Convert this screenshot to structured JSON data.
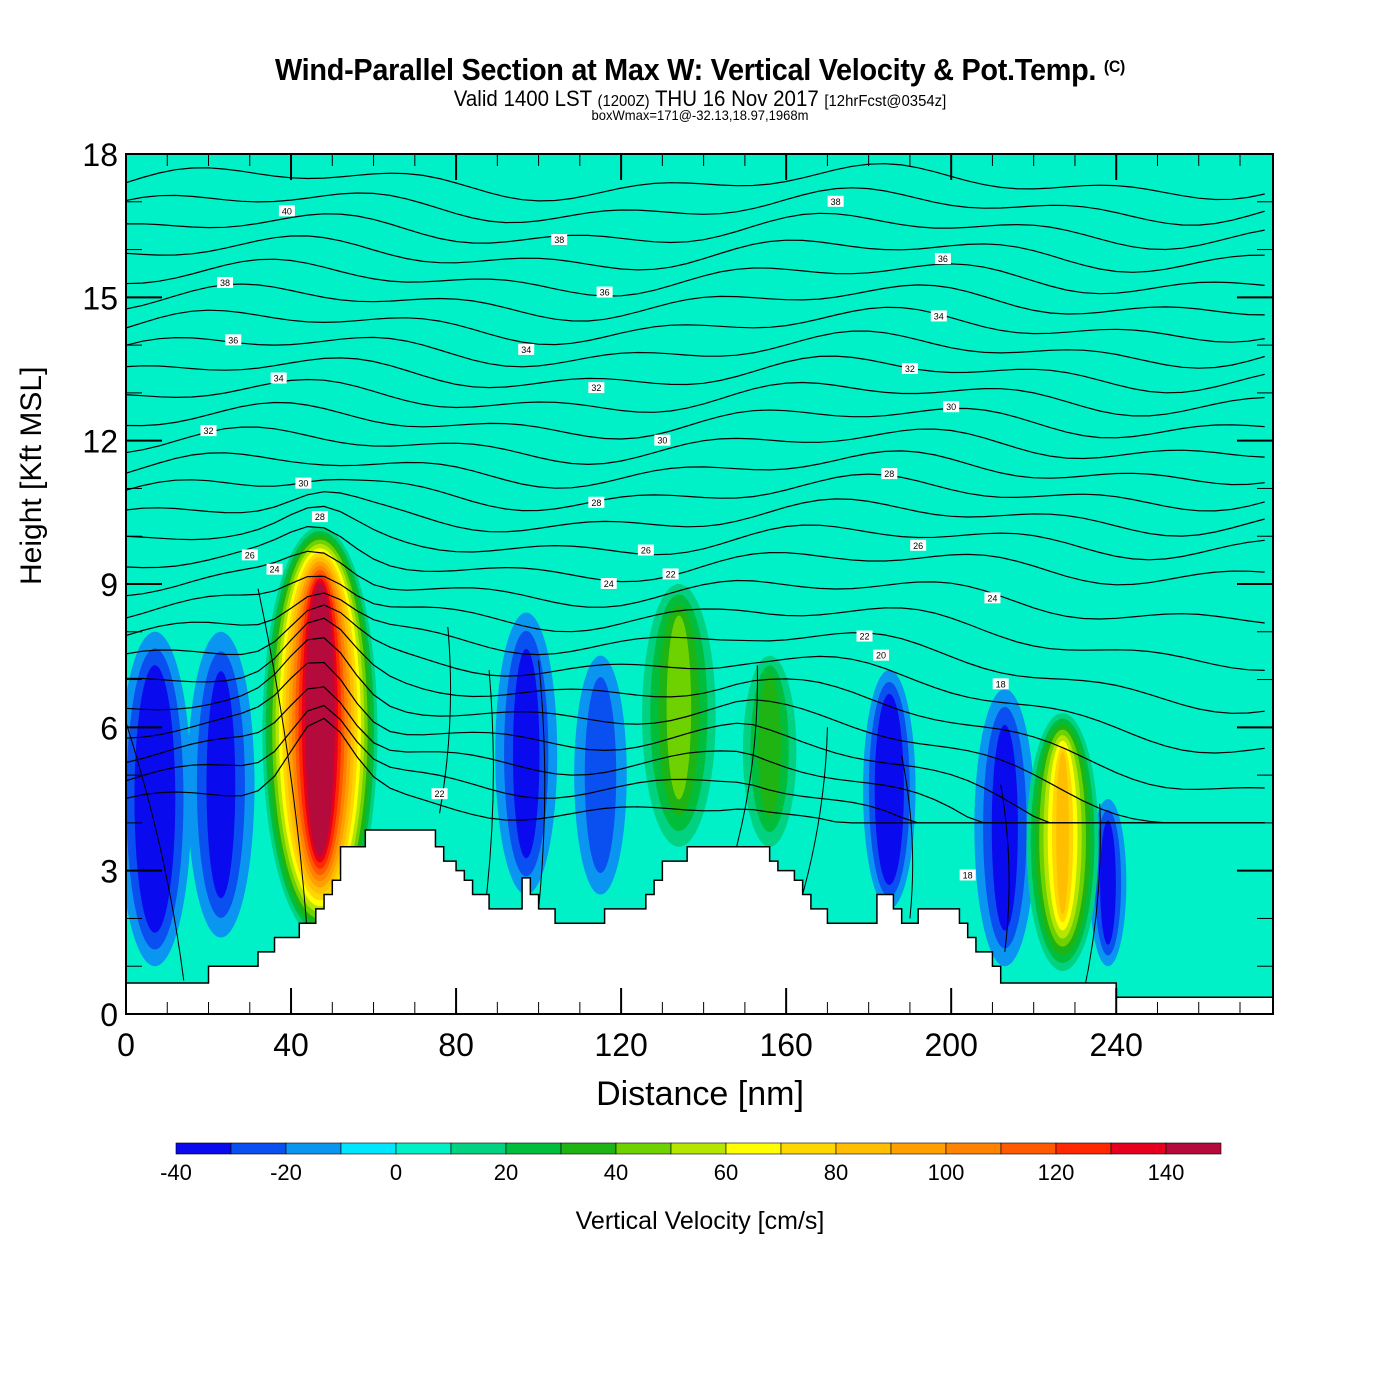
{
  "header": {
    "title": "Wind-Parallel Section at Max W: Vertical Velocity & Pot.Temp.",
    "copyright": "(C)",
    "subtitle_a": "Valid 1400 LST",
    "subtitle_b": "(1200Z)",
    "subtitle_c": "THU 16 Nov 2017",
    "subtitle_d": "[12hrFcst@0354z]",
    "subtitle2": "boxWmax=171@-32.13,18.97,1968m"
  },
  "chart_data": {
    "type": "heatmap",
    "title": "Wind-Parallel Section at Max W: Vertical Velocity & Pot.Temp.",
    "xlabel": "Distance [nm]",
    "ylabel": "Height [Kft MSL]",
    "xlim": [
      0,
      278
    ],
    "ylim": [
      0,
      18
    ],
    "xticks": [
      0,
      40,
      80,
      120,
      160,
      200,
      240
    ],
    "yticks": [
      0,
      3,
      6,
      9,
      12,
      15,
      18
    ],
    "colorbar": {
      "label": "Vertical Velocity [cm/s]",
      "bounds": [
        -40,
        -30,
        -20,
        -10,
        0,
        10,
        20,
        30,
        40,
        50,
        60,
        70,
        80,
        90,
        100,
        110,
        120,
        130,
        140,
        150
      ],
      "tick_labels": [
        "-40",
        "-20",
        "0",
        "20",
        "40",
        "60",
        "80",
        "100",
        "120",
        "140"
      ],
      "colors": [
        "#0a0aee",
        "#0a50f0",
        "#0a96f0",
        "#00e6ff",
        "#00f0c8",
        "#00d282",
        "#00be3c",
        "#1eb414",
        "#6ed200",
        "#b4e600",
        "#ffff00",
        "#ffd700",
        "#ffbe00",
        "#ffa000",
        "#ff8200",
        "#ff5a00",
        "#ff2800",
        "#e6001e",
        "#b40a3c"
      ]
    },
    "background_value_cm_s": 0,
    "max_w": {
      "value_cm_s": 171,
      "lat": -32.13,
      "lon": 18.97,
      "height_m": 1968
    },
    "terrain_kft": {
      "x_nm": [
        0,
        20,
        32,
        36,
        38,
        40,
        42,
        44,
        46,
        48,
        50,
        52,
        58,
        66,
        70,
        75,
        77,
        80,
        82,
        84,
        86,
        88,
        90,
        92,
        96,
        98,
        100,
        104,
        110,
        116,
        118,
        124,
        126,
        128,
        130,
        136,
        150,
        156,
        158,
        162,
        164,
        166,
        168,
        170,
        172,
        174,
        178,
        182,
        186,
        188,
        192,
        196,
        198,
        202,
        204,
        206,
        210,
        212,
        214,
        222,
        228,
        234,
        238,
        240,
        278
      ],
      "height": [
        0.65,
        1.0,
        1.3,
        1.6,
        1.6,
        1.6,
        1.9,
        1.9,
        2.2,
        2.5,
        2.8,
        3.5,
        3.85,
        3.85,
        3.85,
        3.5,
        3.2,
        3.0,
        2.8,
        2.5,
        2.5,
        2.2,
        2.2,
        2.2,
        2.85,
        2.5,
        2.2,
        1.9,
        1.9,
        2.2,
        2.2,
        2.2,
        2.5,
        2.8,
        3.2,
        3.5,
        3.5,
        3.2,
        3.0,
        2.8,
        2.5,
        2.2,
        2.2,
        1.9,
        1.9,
        1.9,
        1.9,
        2.5,
        2.2,
        1.9,
        2.2,
        2.2,
        2.2,
        1.9,
        1.6,
        1.3,
        1.0,
        0.65,
        0.65,
        0.65,
        0.65,
        0.65,
        0.65,
        0.35,
        0.35
      ]
    },
    "updrafts": [
      {
        "name": "main-updraft",
        "x_nm": 47,
        "top_kft": 10.2,
        "bottom_kft": 1.6,
        "peak_cm_s": 171
      },
      {
        "name": "updraft-134nm",
        "x_nm": 134,
        "top_kft": 9.0,
        "bottom_kft": 3.5,
        "peak_cm_s": 40
      },
      {
        "name": "updraft-156nm",
        "x_nm": 156,
        "top_kft": 7.5,
        "bottom_kft": 3.5,
        "peak_cm_s": 30
      },
      {
        "name": "updraft-227nm",
        "x_nm": 227,
        "top_kft": 6.3,
        "bottom_kft": 0.9,
        "peak_cm_s": 80
      }
    ],
    "downdrafts": [
      {
        "name": "downdraft-7nm",
        "x_nm": 7,
        "top_kft": 8.0,
        "bottom_kft": 1.0,
        "peak_cm_s": -40
      },
      {
        "name": "downdraft-23nm",
        "x_nm": 23,
        "top_kft": 8.0,
        "bottom_kft": 1.6,
        "peak_cm_s": -30
      },
      {
        "name": "downdraft-97nm",
        "x_nm": 97,
        "top_kft": 8.4,
        "bottom_kft": 2.5,
        "peak_cm_s": -30
      },
      {
        "name": "downdraft-115nm",
        "x_nm": 115,
        "top_kft": 7.5,
        "bottom_kft": 2.5,
        "peak_cm_s": -20
      },
      {
        "name": "downdraft-185nm",
        "x_nm": 185,
        "top_kft": 7.2,
        "bottom_kft": 2.2,
        "peak_cm_s": -40
      },
      {
        "name": "downdraft-213nm",
        "x_nm": 213,
        "top_kft": 6.8,
        "bottom_kft": 1.0,
        "peak_cm_s": -30
      },
      {
        "name": "downdraft-238nm",
        "x_nm": 238,
        "top_kft": 4.5,
        "bottom_kft": 1.0,
        "peak_cm_s": -30
      }
    ],
    "theta_contours": {
      "units": "C",
      "interval": 1,
      "labels": [
        {
          "value": "40",
          "x_nm": 39,
          "height_kft": 16.8
        },
        {
          "value": "38",
          "x_nm": 24,
          "height_kft": 15.3
        },
        {
          "value": "36",
          "x_nm": 26,
          "height_kft": 14.1
        },
        {
          "value": "34",
          "x_nm": 37,
          "height_kft": 13.3
        },
        {
          "value": "32",
          "x_nm": 20,
          "height_kft": 12.2
        },
        {
          "value": "30",
          "x_nm": 43,
          "height_kft": 11.1
        },
        {
          "value": "28",
          "x_nm": 47,
          "height_kft": 10.4
        },
        {
          "value": "26",
          "x_nm": 30,
          "height_kft": 9.6
        },
        {
          "value": "24",
          "x_nm": 36,
          "height_kft": 9.3
        },
        {
          "value": "38",
          "x_nm": 105,
          "height_kft": 16.2
        },
        {
          "value": "36",
          "x_nm": 116,
          "height_kft": 15.1
        },
        {
          "value": "34",
          "x_nm": 97,
          "height_kft": 13.9
        },
        {
          "value": "32",
          "x_nm": 114,
          "height_kft": 13.1
        },
        {
          "value": "30",
          "x_nm": 130,
          "height_kft": 12.0
        },
        {
          "value": "28",
          "x_nm": 114,
          "height_kft": 10.7
        },
        {
          "value": "26",
          "x_nm": 126,
          "height_kft": 9.7
        },
        {
          "value": "24",
          "x_nm": 117,
          "height_kft": 9.0
        },
        {
          "value": "22",
          "x_nm": 132,
          "height_kft": 9.2
        },
        {
          "value": "38",
          "x_nm": 172,
          "height_kft": 17.0
        },
        {
          "value": "36",
          "x_nm": 198,
          "height_kft": 15.8
        },
        {
          "value": "34",
          "x_nm": 197,
          "height_kft": 14.6
        },
        {
          "value": "32",
          "x_nm": 190,
          "height_kft": 13.5
        },
        {
          "value": "30",
          "x_nm": 200,
          "height_kft": 12.7
        },
        {
          "value": "28",
          "x_nm": 185,
          "height_kft": 11.3
        },
        {
          "value": "26",
          "x_nm": 192,
          "height_kft": 9.8
        },
        {
          "value": "24",
          "x_nm": 210,
          "height_kft": 8.7
        },
        {
          "value": "22",
          "x_nm": 179,
          "height_kft": 7.9
        },
        {
          "value": "20",
          "x_nm": 183,
          "height_kft": 7.5
        },
        {
          "value": "18",
          "x_nm": 212,
          "height_kft": 6.9
        },
        {
          "value": "22",
          "x_nm": 76,
          "height_kft": 4.6
        },
        {
          "value": "18",
          "x_nm": 204,
          "height_kft": 2.9
        }
      ]
    }
  }
}
